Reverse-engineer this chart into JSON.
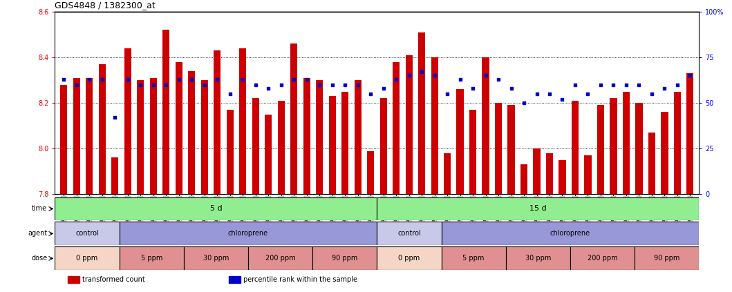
{
  "title": "GDS4848 / 1382300_at",
  "ylim_left": [
    7.8,
    8.6
  ],
  "ylim_right": [
    0,
    100
  ],
  "yticks_left": [
    7.8,
    8.0,
    8.2,
    8.4,
    8.6
  ],
  "yticks_right": [
    0,
    25,
    50,
    75,
    100
  ],
  "bar_color": "#cc0000",
  "dot_color": "#0000cc",
  "samples": [
    "GSM1001824",
    "GSM1001825",
    "GSM1001826",
    "GSM1001827",
    "GSM1001828",
    "GSM1001854",
    "GSM1001855",
    "GSM1001856",
    "GSM1001857",
    "GSM1001858",
    "GSM1001844",
    "GSM1001845",
    "GSM1001846",
    "GSM1001847",
    "GSM1001848",
    "GSM1001834",
    "GSM1001835",
    "GSM1001836",
    "GSM1001837",
    "GSM1001838",
    "GSM1001864",
    "GSM1001865",
    "GSM1001866",
    "GSM1001867",
    "GSM1001868",
    "GSM1001819",
    "GSM1001820",
    "GSM1001821",
    "GSM1001822",
    "GSM1001823",
    "GSM1001849",
    "GSM1001850",
    "GSM1001851",
    "GSM1001852",
    "GSM1001853",
    "GSM1001839",
    "GSM1001840",
    "GSM1001841",
    "GSM1001842",
    "GSM1001843",
    "GSM1001829",
    "GSM1001830",
    "GSM1001831",
    "GSM1001832",
    "GSM1001833",
    "GSM1001859",
    "GSM1001860",
    "GSM1001861",
    "GSM1001862",
    "GSM1001863"
  ],
  "bar_values": [
    8.28,
    8.31,
    8.31,
    8.37,
    7.96,
    8.44,
    8.3,
    8.31,
    8.52,
    8.38,
    8.34,
    8.3,
    8.43,
    8.17,
    8.44,
    8.22,
    8.15,
    8.21,
    8.46,
    8.31,
    8.3,
    8.23,
    8.25,
    8.3,
    7.99,
    8.22,
    8.38,
    8.41,
    8.51,
    8.4,
    7.98,
    8.26,
    8.17,
    8.4,
    8.2,
    8.19,
    7.93,
    8.0,
    7.98,
    7.95,
    8.21,
    7.97,
    8.19,
    8.22,
    8.25,
    8.2,
    8.07,
    8.16,
    8.25,
    8.33
  ],
  "dot_values": [
    63,
    60,
    63,
    63,
    42,
    63,
    60,
    60,
    60,
    63,
    63,
    60,
    63,
    55,
    63,
    60,
    58,
    60,
    63,
    63,
    60,
    60,
    60,
    60,
    55,
    58,
    63,
    65,
    67,
    65,
    55,
    63,
    58,
    65,
    63,
    58,
    50,
    55,
    55,
    52,
    60,
    55,
    60,
    60,
    60,
    60,
    55,
    58,
    60,
    65
  ],
  "time_labels": [
    {
      "label": "5 d",
      "start": 0,
      "end": 25
    },
    {
      "label": "15 d",
      "start": 25,
      "end": 50
    }
  ],
  "time_color": "#90ee90",
  "agent_groups": [
    {
      "label": "control",
      "start": 0,
      "end": 5,
      "color": "#c8c8e8"
    },
    {
      "label": "chloroprene",
      "start": 5,
      "end": 25,
      "color": "#9898d8"
    },
    {
      "label": "control",
      "start": 25,
      "end": 30,
      "color": "#c8c8e8"
    },
    {
      "label": "chloroprene",
      "start": 30,
      "end": 50,
      "color": "#9898d8"
    }
  ],
  "dose_groups": [
    {
      "label": "0 ppm",
      "start": 0,
      "end": 5,
      "color": "#f5d5c5"
    },
    {
      "label": "5 ppm",
      "start": 5,
      "end": 10,
      "color": "#e09090"
    },
    {
      "label": "30 ppm",
      "start": 10,
      "end": 15,
      "color": "#e09090"
    },
    {
      "label": "200 ppm",
      "start": 15,
      "end": 20,
      "color": "#e09090"
    },
    {
      "label": "90 ppm",
      "start": 20,
      "end": 25,
      "color": "#e09090"
    },
    {
      "label": "0 ppm",
      "start": 25,
      "end": 30,
      "color": "#f5d5c5"
    },
    {
      "label": "5 ppm",
      "start": 30,
      "end": 35,
      "color": "#e09090"
    },
    {
      "label": "30 ppm",
      "start": 35,
      "end": 40,
      "color": "#e09090"
    },
    {
      "label": "200 ppm",
      "start": 40,
      "end": 45,
      "color": "#e09090"
    },
    {
      "label": "90 ppm",
      "start": 45,
      "end": 50,
      "color": "#e09090"
    }
  ],
  "legend_items": [
    {
      "label": "transformed count",
      "color": "#cc0000"
    },
    {
      "label": "percentile rank within the sample",
      "color": "#0000cc"
    }
  ],
  "bg_color": "#f0f0f0",
  "xtick_bg": "#d8d8d8"
}
